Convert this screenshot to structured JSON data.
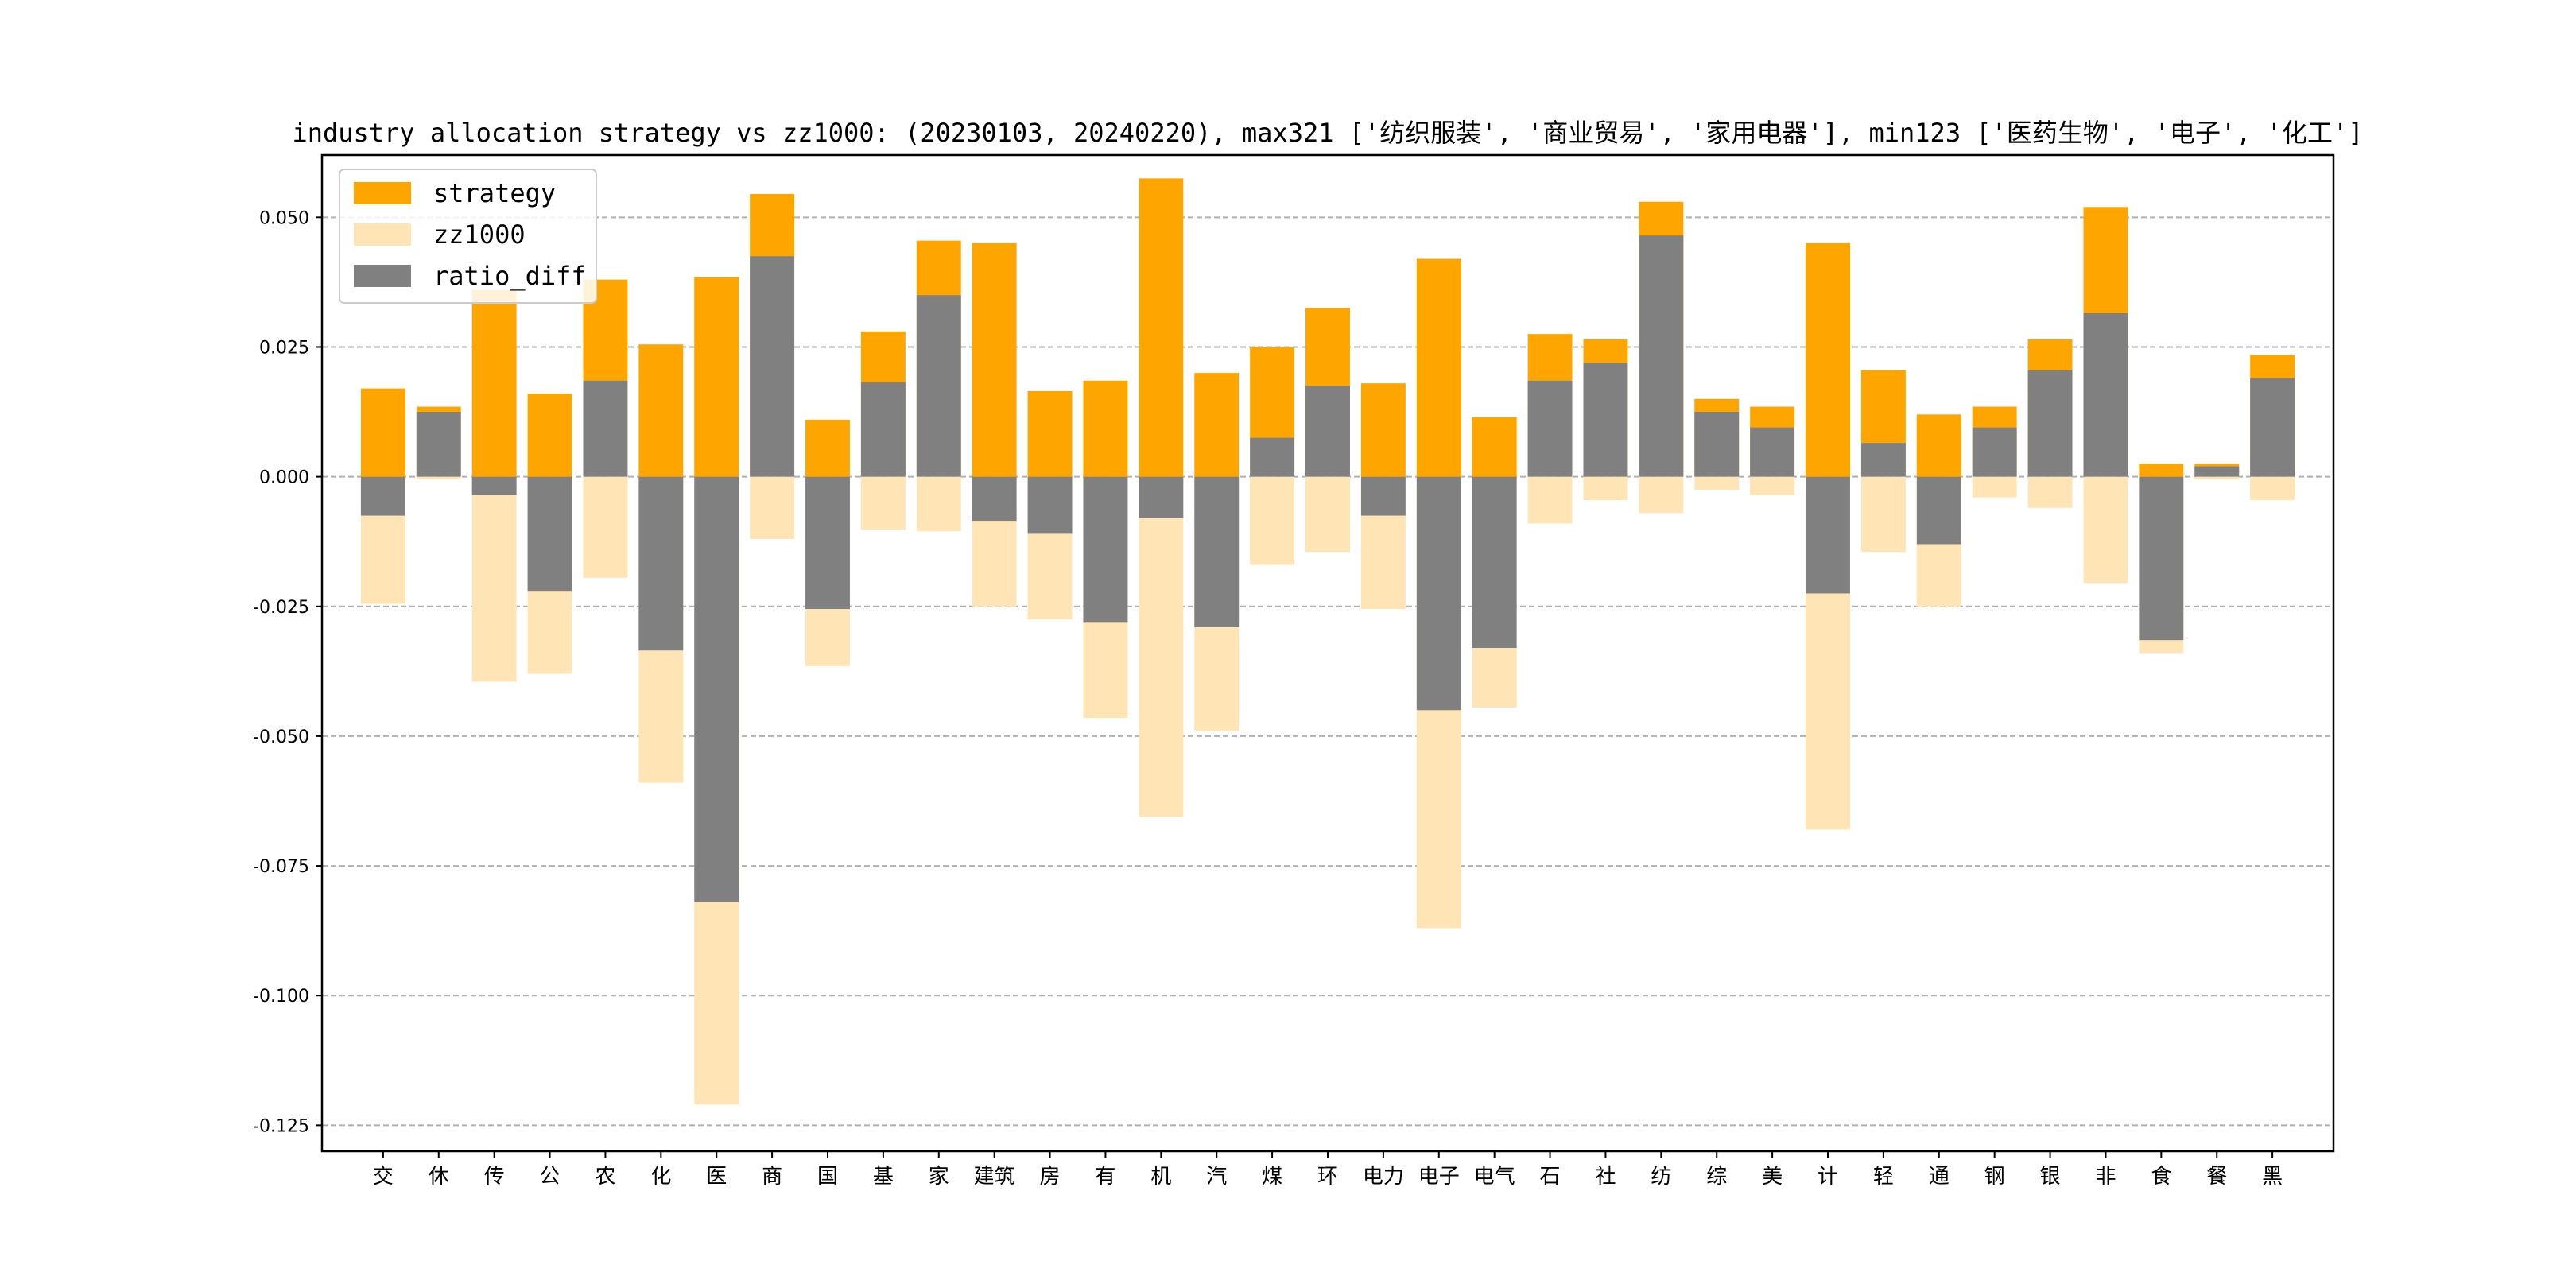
{
  "chart_data": {
    "type": "bar",
    "title": "industry allocation strategy vs zz1000: (20230103, 20240220), max321 ['纺织服装', '商业贸易', '家用电器'], min123 ['医药生物', '电子', '化工']",
    "xlabel": "",
    "ylabel": "",
    "ylim": [
      -0.13,
      0.062
    ],
    "yticks": [
      0.05,
      0.025,
      0.0,
      -0.025,
      -0.05,
      -0.075,
      -0.1,
      -0.125
    ],
    "ytick_labels": [
      "0.050",
      "0.025",
      "0.000",
      "-0.025",
      "-0.050",
      "-0.075",
      "-0.100",
      "-0.125"
    ],
    "grid": "horizontal-dashed",
    "legend_position": "top-left",
    "categories": [
      "交",
      "休",
      "传",
      "公",
      "农",
      "化",
      "医",
      "商",
      "国",
      "基",
      "家",
      "建筑",
      "房",
      "有",
      "机",
      "汽",
      "煤",
      "环",
      "电力",
      "电子",
      "电气",
      "石",
      "社",
      "纺",
      "综",
      "美",
      "计",
      "轻",
      "通",
      "钢",
      "银",
      "非",
      "食",
      "餐",
      "黑"
    ],
    "series": [
      {
        "name": "strategy",
        "color": "#FFA500",
        "values": [
          0.017,
          0.0135,
          0.036,
          0.016,
          0.038,
          0.0255,
          0.0385,
          0.0545,
          0.011,
          0.028,
          0.0455,
          0.045,
          0.0165,
          0.0185,
          0.0575,
          0.02,
          0.025,
          0.0325,
          0.018,
          0.042,
          0.0115,
          0.0275,
          0.0265,
          0.053,
          0.015,
          0.0135,
          0.045,
          0.0205,
          0.012,
          0.0135,
          0.0265,
          0.052,
          0.0025,
          0.0025,
          0.0235
        ]
      },
      {
        "name": "zz1000",
        "color": "#FFE4B5",
        "values": [
          -0.0245,
          -0.0005,
          -0.0395,
          -0.038,
          -0.0195,
          -0.059,
          -0.121,
          -0.012,
          -0.0365,
          -0.0102,
          -0.0105,
          -0.025,
          -0.0275,
          -0.0465,
          -0.0655,
          -0.049,
          -0.017,
          -0.0145,
          -0.0255,
          -0.087,
          -0.0445,
          -0.009,
          -0.0045,
          -0.007,
          -0.0025,
          -0.0035,
          -0.068,
          -0.0145,
          -0.025,
          -0.004,
          -0.006,
          -0.0205,
          -0.034,
          -0.0005,
          -0.0045
        ]
      },
      {
        "name": "ratio_diff",
        "color": "#808080",
        "values": [
          -0.0075,
          0.0125,
          -0.0035,
          -0.022,
          0.0185,
          -0.0335,
          -0.082,
          0.0425,
          -0.0255,
          0.0182,
          0.035,
          -0.0085,
          -0.011,
          -0.028,
          -0.008,
          -0.029,
          0.0075,
          0.0175,
          -0.0075,
          -0.045,
          -0.033,
          0.0185,
          0.022,
          0.0465,
          0.0125,
          0.0095,
          -0.0225,
          0.0065,
          -0.013,
          0.0095,
          0.0205,
          0.0315,
          -0.0315,
          0.002,
          0.019
        ]
      }
    ]
  }
}
